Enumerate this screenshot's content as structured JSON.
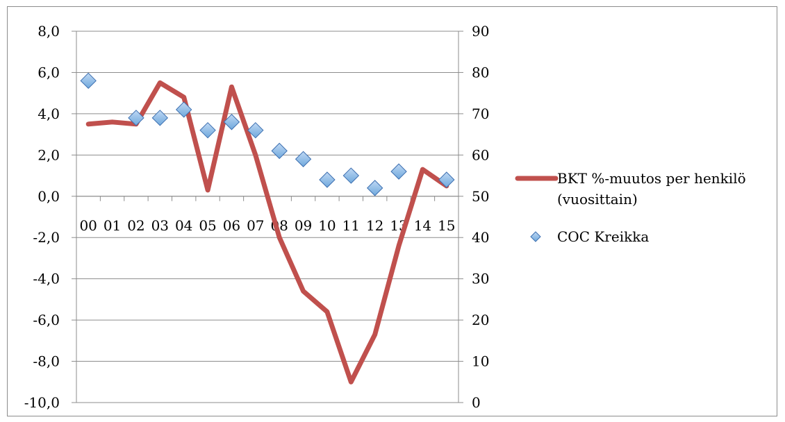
{
  "chart_data": {
    "type": "line",
    "categories": [
      "00",
      "01",
      "02",
      "03",
      "04",
      "05",
      "06",
      "07",
      "08",
      "09",
      "10",
      "11",
      "12",
      "13",
      "14",
      "15"
    ],
    "series": [
      {
        "name": "BKT %-muutos per henkilö (vuosittain)",
        "kind": "line",
        "axis": "left",
        "color": "#c0504d",
        "values": [
          3.5,
          3.6,
          3.5,
          5.5,
          4.8,
          0.3,
          5.3,
          2.0,
          -2.0,
          -4.6,
          -5.6,
          -9.0,
          -6.7,
          -2.4,
          1.3,
          0.5
        ]
      },
      {
        "name": "COC Kreikka",
        "kind": "scatter",
        "axis": "right",
        "color": "#6fa8dc",
        "values": [
          78,
          null,
          69,
          69,
          71,
          66,
          68,
          66,
          61,
          59,
          54,
          55,
          52,
          56,
          null,
          54
        ]
      }
    ],
    "y_left": {
      "ylim": [
        -10,
        8
      ],
      "ticks": [
        8,
        6,
        4,
        2,
        0,
        -2,
        -4,
        -6,
        -8,
        -10
      ],
      "tick_labels": [
        "8,0",
        "6,0",
        "4,0",
        "2,0",
        "0,0",
        "-2,0",
        "-4,0",
        "-6,0",
        "-8,0",
        "-10,0"
      ]
    },
    "y_right": {
      "ylim": [
        0,
        90
      ],
      "ticks": [
        90,
        80,
        70,
        60,
        50,
        40,
        30,
        20,
        10,
        0
      ],
      "tick_labels": [
        "90",
        "80",
        "70",
        "60",
        "50",
        "40",
        "30",
        "20",
        "10",
        "0"
      ]
    },
    "grid": true,
    "legend_position": "right",
    "legend": [
      {
        "lines": [
          "BKT %-muutos per henkilö",
          "(vuosittain)"
        ]
      },
      {
        "lines": [
          "COC Kreikka"
        ]
      }
    ],
    "title": "",
    "xlabel": "",
    "ylabel": ""
  }
}
